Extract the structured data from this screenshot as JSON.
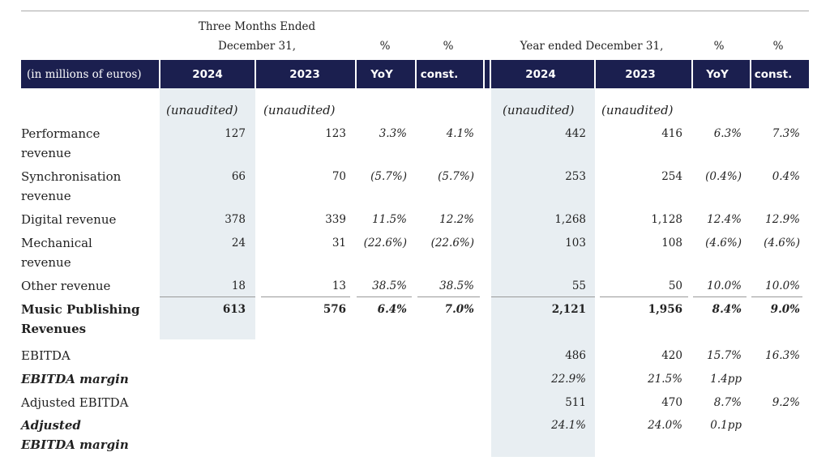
{
  "header": {
    "three_months_title": [
      "Three Months Ended",
      "December 31,"
    ],
    "year_title": "Year ended December 31,",
    "percent_labels": [
      "%",
      "%",
      "%",
      "%"
    ]
  },
  "header_row": [
    "(in millions of euros)",
    "2024",
    "2023",
    "YoY",
    "const.",
    "2024",
    "2023",
    "YoY",
    "const."
  ],
  "unaudited_row": [
    "(unaudited)",
    "(unaudited)",
    "(unaudited)",
    "(unaudited)"
  ],
  "rows": [
    {
      "label": [
        "Performance",
        "revenue"
      ],
      "cells": [
        "127",
        "123",
        "3.3%",
        "4.1%",
        "442",
        "416",
        "6.3%",
        "7.3%"
      ]
    },
    {
      "label": [
        "Synchronisation",
        "revenue"
      ],
      "cells": [
        "66",
        "70",
        "(5.7%)",
        "(5.7%)",
        "253",
        "254",
        "(0.4%)",
        "0.4%"
      ]
    },
    {
      "label": [
        "Digital revenue"
      ],
      "cells": [
        "378",
        "339",
        "11.5%",
        "12.2%",
        "1,268",
        "1,128",
        "12.4%",
        "12.9%"
      ]
    },
    {
      "label": [
        "Mechanical",
        "revenue"
      ],
      "cells": [
        "24",
        "31",
        "(22.6%)",
        "(22.6%)",
        "103",
        "108",
        "(4.6%)",
        "(4.6%)"
      ]
    },
    {
      "label": [
        "Other revenue"
      ],
      "cells": [
        "18",
        "13",
        "38.5%",
        "38.5%",
        "55",
        "50",
        "10.0%",
        "10.0%"
      ]
    },
    {
      "label": [
        "Music Publishing",
        "Revenues"
      ],
      "style": "bold",
      "cells": [
        "613",
        "576",
        "6.4%",
        "7.0%",
        "2,121",
        "1,956",
        "8.4%",
        "9.0%"
      ]
    },
    {
      "label": [
        "EBITDA"
      ],
      "cells": [
        null,
        null,
        null,
        null,
        "486",
        "420",
        "15.7%",
        "16.3%"
      ]
    },
    {
      "label": [
        "EBITDA margin"
      ],
      "style": "italic",
      "cells": [
        null,
        null,
        null,
        null,
        "22.9%",
        "21.5%",
        "1.4pp",
        null
      ]
    },
    {
      "label": [
        "Adjusted EBITDA"
      ],
      "cells": [
        null,
        null,
        null,
        null,
        "511",
        "470",
        "8.7%",
        "9.2%"
      ]
    },
    {
      "label": [
        "Adjusted",
        "EBITDA margin"
      ],
      "style": "italic",
      "cells": [
        null,
        null,
        null,
        null,
        "24.1%",
        "24.0%",
        "0.1pp",
        null
      ]
    }
  ]
}
